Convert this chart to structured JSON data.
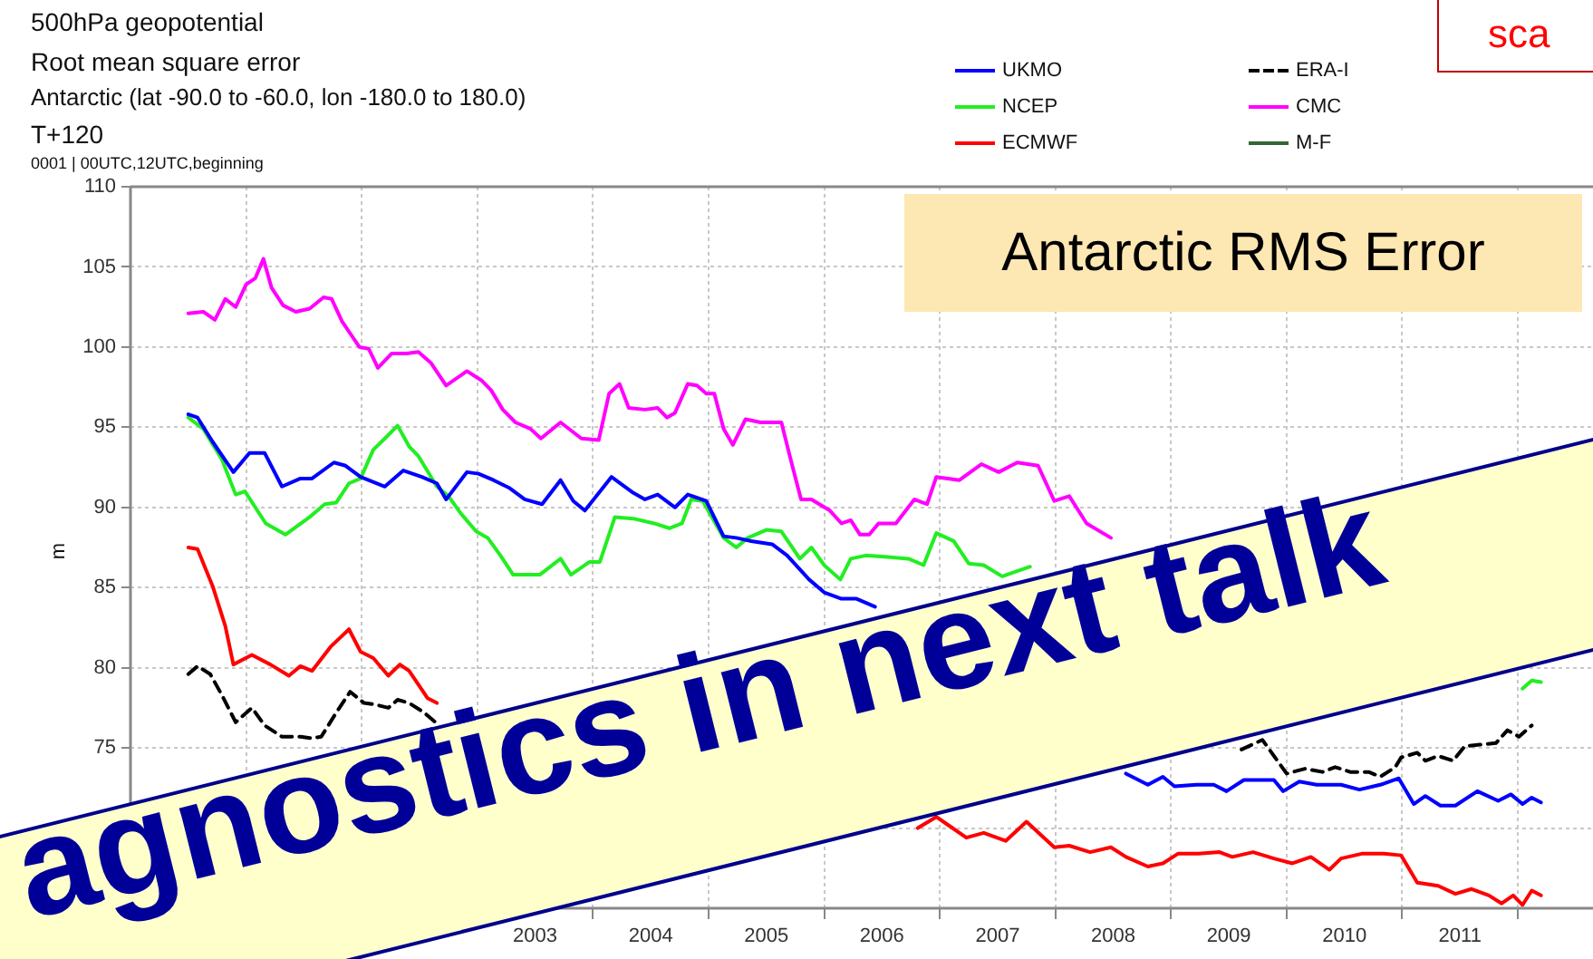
{
  "chart_data": {
    "type": "line",
    "title": "500hPa geopotential",
    "subtitle": "Root mean square error\nAntarctic (lat -90.0 to -60.0, lon -180.0 to 180.0)\nT+120\n0001 | 00UTC,12UTC,beginning",
    "ylabel": "m",
    "annotations": [
      "Antarctic RMS Error",
      "agnostics in next talk",
      "sca"
    ],
    "xlim": [
      2000,
      2012.65
    ],
    "xticks": [
      {
        "value": 2000,
        "label": null
      },
      {
        "value": 2001,
        "label": null
      },
      {
        "value": 2002,
        "label": null
      },
      {
        "value": 2003,
        "label": null
      },
      {
        "value": 2003.5,
        "label": "2003"
      },
      {
        "value": 2004,
        "label": null
      },
      {
        "value": 2004.5,
        "label": "2004"
      },
      {
        "value": 2005,
        "label": null
      },
      {
        "value": 2005.5,
        "label": "2005"
      },
      {
        "value": 2006,
        "label": null
      },
      {
        "value": 2006.5,
        "label": "2006"
      },
      {
        "value": 2007,
        "label": null
      },
      {
        "value": 2007.5,
        "label": "2007"
      },
      {
        "value": 2008,
        "label": null
      },
      {
        "value": 2008.5,
        "label": "2008"
      },
      {
        "value": 2009,
        "label": null
      },
      {
        "value": 2009.5,
        "label": "2009"
      },
      {
        "value": 2010,
        "label": null
      },
      {
        "value": 2010.5,
        "label": "2010"
      },
      {
        "value": 2011,
        "label": null
      },
      {
        "value": 2011.5,
        "label": "2011"
      },
      {
        "value": 2012,
        "label": null
      }
    ],
    "ylim": [
      65,
      110
    ],
    "yticks": [
      {
        "value": 65,
        "label": null
      },
      {
        "value": 70,
        "label": null
      },
      75,
      80,
      85,
      90,
      95,
      100,
      105,
      110
    ],
    "grid": true,
    "legend": "top right",
    "marker": "none",
    "series": [
      {
        "name": "UKMO",
        "color": "#0000ff",
        "x": [
          2000.5,
          2000.58,
          2000.71,
          2000.89,
          2001.03,
          2001.16,
          2001.31,
          2001.47,
          2001.57,
          2001.76,
          2001.86,
          2001.99,
          2002.2,
          2002.36,
          2002.52,
          2002.65,
          2002.73,
          2002.91,
          2003.01,
          2003.14,
          2003.28,
          2003.41,
          2003.56,
          2003.72,
          2003.83,
          2003.93,
          2004.16,
          2004.35,
          2004.45,
          2004.56,
          2004.71,
          2004.82,
          2004.98,
          2005.13,
          2005.24,
          2005.37,
          2005.55,
          2005.68,
          2005.87,
          2006.0,
          2006.15,
          2006.28,
          2006.44,
          2007.5,
          2008.61,
          2008.8,
          2008.93,
          2009.03,
          2009.22,
          2009.37,
          2009.48,
          2009.63,
          2009.89,
          2009.97,
          2010.11,
          2010.26,
          2010.47,
          2010.63,
          2010.81,
          2010.97,
          2011.1,
          2011.2,
          2011.33,
          2011.46,
          2011.65,
          2011.83,
          2011.94,
          2012.04,
          2012.12,
          2012.2
        ],
        "values": [
          95.8,
          95.6,
          94.1,
          92.2,
          93.4,
          93.4,
          91.3,
          91.8,
          91.8,
          92.8,
          92.6,
          91.9,
          91.3,
          92.3,
          91.9,
          91.5,
          90.5,
          92.2,
          92.1,
          91.7,
          91.2,
          90.5,
          90.2,
          91.7,
          90.4,
          89.8,
          91.9,
          90.9,
          90.5,
          90.8,
          90.0,
          90.8,
          90.4,
          88.2,
          88.1,
          87.9,
          87.7,
          87.0,
          85.5,
          84.7,
          84.3,
          84.3,
          83.8,
          null,
          73.4,
          72.7,
          73.2,
          72.6,
          72.7,
          72.7,
          72.3,
          73.0,
          73.0,
          72.3,
          72.9,
          72.7,
          72.7,
          72.4,
          72.7,
          73.1,
          71.5,
          72.0,
          71.4,
          71.4,
          72.3,
          71.7,
          72.1,
          71.5,
          71.9,
          71.6
        ]
      },
      {
        "name": "NCEP",
        "color": "#22ee22",
        "x": [
          2000.5,
          2000.63,
          2000.79,
          2000.91,
          2000.99,
          2001.17,
          2001.34,
          2001.55,
          2001.68,
          2001.78,
          2001.89,
          2001.99,
          2002.1,
          2002.2,
          2002.31,
          2002.41,
          2002.49,
          2002.65,
          2002.75,
          2002.86,
          2002.99,
          2003.09,
          2003.2,
          2003.31,
          2003.54,
          2003.72,
          2003.81,
          2003.97,
          2004.06,
          2004.19,
          2004.35,
          2004.53,
          2004.66,
          2004.77,
          2004.85,
          2004.95,
          2005.13,
          2005.24,
          2005.34,
          2005.5,
          2005.63,
          2005.79,
          2005.89,
          2006.0,
          2006.14,
          2006.23,
          2006.36,
          2006.55,
          2006.73,
          2006.86,
          2006.97,
          2007.12,
          2007.25,
          2007.38,
          2007.54,
          2007.78,
          2010.0,
          2012.04,
          2012.12,
          2012.2
        ],
        "values": [
          95.6,
          94.9,
          93.0,
          90.8,
          91.0,
          89.0,
          88.3,
          89.4,
          90.2,
          90.3,
          91.5,
          91.8,
          93.6,
          94.3,
          95.1,
          93.8,
          93.2,
          91.3,
          90.7,
          89.6,
          88.5,
          88.1,
          87.0,
          85.8,
          85.8,
          86.8,
          85.8,
          86.6,
          86.6,
          89.4,
          89.3,
          89.0,
          88.7,
          89.0,
          90.5,
          90.4,
          88.1,
          87.5,
          88.1,
          88.6,
          88.5,
          86.8,
          87.5,
          86.4,
          85.5,
          86.8,
          87.0,
          86.9,
          86.8,
          86.4,
          88.4,
          87.9,
          86.5,
          86.4,
          85.7,
          86.3,
          null,
          78.7,
          79.2,
          79.1
        ]
      },
      {
        "name": "ECMWF",
        "color": "#ff0000",
        "x": [
          2000.5,
          2000.58,
          2000.71,
          2000.82,
          2000.89,
          2001.05,
          2001.21,
          2001.37,
          2001.47,
          2001.57,
          2001.73,
          2001.89,
          2001.99,
          2002.1,
          2002.23,
          2002.33,
          2002.41,
          2002.57,
          2002.65,
          2004.5,
          2006.81,
          2006.97,
          2007.07,
          2007.23,
          2007.38,
          2007.57,
          2007.75,
          2007.99,
          2008.12,
          2008.3,
          2008.48,
          2008.61,
          2008.8,
          2008.93,
          2009.06,
          2009.24,
          2009.42,
          2009.53,
          2009.71,
          2009.89,
          2010.05,
          2010.21,
          2010.37,
          2010.47,
          2010.65,
          2010.84,
          2010.99,
          2011.13,
          2011.31,
          2011.46,
          2011.6,
          2011.75,
          2011.86,
          2011.96,
          2012.04,
          2012.12,
          2012.2
        ],
        "values": [
          87.5,
          87.4,
          85.1,
          82.6,
          80.2,
          80.8,
          80.2,
          79.5,
          80.1,
          79.8,
          81.3,
          82.4,
          81.0,
          80.6,
          79.5,
          80.2,
          79.8,
          78.1,
          77.8,
          null,
          70.0,
          70.7,
          70.2,
          69.4,
          69.7,
          69.2,
          70.4,
          68.8,
          68.9,
          68.5,
          68.8,
          68.2,
          67.6,
          67.8,
          68.4,
          68.4,
          68.5,
          68.2,
          68.5,
          68.1,
          67.8,
          68.2,
          67.4,
          68.1,
          68.4,
          68.4,
          68.3,
          66.6,
          66.4,
          65.9,
          66.2,
          65.8,
          65.3,
          65.8,
          65.2,
          66.1,
          65.8
        ]
      },
      {
        "name": "ERA-I",
        "color": "#000000",
        "line_style": "dashed",
        "x": [
          2000.5,
          2000.58,
          2000.69,
          2000.79,
          2000.91,
          2001.05,
          2001.16,
          2001.31,
          2001.47,
          2001.57,
          2001.65,
          2001.78,
          2001.9,
          2002.02,
          2002.12,
          2002.23,
          2002.31,
          2002.41,
          2002.54,
          2002.67,
          2005.0,
          2009.61,
          2009.79,
          2010.0,
          2010.16,
          2010.31,
          2010.42,
          2010.55,
          2010.71,
          2010.81,
          2010.94,
          2010.99,
          2011.13,
          2011.2,
          2011.31,
          2011.44,
          2011.54,
          2011.67,
          2011.81,
          2011.91,
          2012.01,
          2012.12
        ],
        "values": [
          79.6,
          80.1,
          79.6,
          78.3,
          76.6,
          77.5,
          76.4,
          75.7,
          75.7,
          75.6,
          75.7,
          77.2,
          78.5,
          77.8,
          77.7,
          77.5,
          78.0,
          77.8,
          77.2,
          76.4,
          null,
          74.9,
          75.5,
          73.4,
          73.7,
          73.5,
          73.8,
          73.5,
          73.5,
          73.2,
          73.8,
          74.4,
          74.7,
          74.2,
          74.5,
          74.2,
          75.1,
          75.2,
          75.3,
          76.1,
          75.7,
          76.4
        ]
      },
      {
        "name": "CMC",
        "color": "#ff00ff",
        "x": [
          2000.5,
          2000.63,
          2000.73,
          2000.82,
          2000.91,
          2001.0,
          2001.08,
          2001.15,
          2001.22,
          2001.32,
          2001.43,
          2001.55,
          2001.67,
          2001.74,
          2001.83,
          2001.98,
          2002.06,
          2002.14,
          2002.26,
          2002.39,
          2002.49,
          2002.6,
          2002.73,
          2002.91,
          2003.04,
          2003.12,
          2003.22,
          2003.33,
          2003.46,
          2003.55,
          2003.72,
          2003.9,
          2004.05,
          2004.14,
          2004.23,
          2004.31,
          2004.45,
          2004.56,
          2004.64,
          2004.71,
          2004.82,
          2004.9,
          2004.98,
          2005.05,
          2005.13,
          2005.21,
          2005.32,
          2005.45,
          2005.63,
          2005.71,
          2005.8,
          2005.89,
          2006.05,
          2006.15,
          2006.23,
          2006.31,
          2006.39,
          2006.47,
          2006.62,
          2006.78,
          2006.89,
          2006.97,
          2007.17,
          2007.36,
          2007.51,
          2007.67,
          2007.85,
          2007.99,
          2008.12,
          2008.27,
          2008.48
        ],
        "values": [
          102.1,
          102.2,
          101.7,
          103.0,
          102.5,
          103.9,
          104.3,
          105.5,
          103.7,
          102.6,
          102.2,
          102.4,
          103.1,
          103.0,
          101.6,
          100.0,
          99.9,
          98.7,
          99.6,
          99.6,
          99.7,
          99.0,
          97.6,
          98.5,
          97.9,
          97.3,
          96.1,
          95.3,
          94.9,
          94.3,
          95.3,
          94.3,
          94.2,
          97.1,
          97.7,
          96.2,
          96.1,
          96.2,
          95.6,
          95.9,
          97.7,
          97.6,
          97.1,
          97.1,
          94.9,
          93.9,
          95.5,
          95.3,
          95.3,
          93.0,
          90.5,
          90.5,
          89.8,
          89.0,
          89.2,
          88.3,
          88.3,
          89.0,
          89.0,
          90.5,
          90.2,
          91.9,
          91.7,
          92.7,
          92.2,
          92.8,
          92.6,
          90.4,
          90.7,
          89.0,
          88.1
        ]
      },
      {
        "name": "M-F",
        "color": "#336633"
      }
    ]
  }
}
